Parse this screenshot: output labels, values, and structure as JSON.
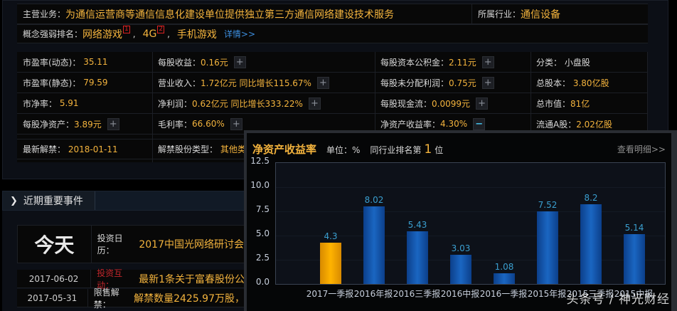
{
  "company_info": {
    "business_label": "主营业务：",
    "business_value": "为通信运营商等通信信息化建设单位提供独立第三方通信网络建设技术服务",
    "industry_label": "所属行业：",
    "industry_value": "通信设备",
    "concept_label": "概念强弱排名：",
    "concepts": [
      {
        "name": "网络游戏",
        "rank": "1"
      },
      {
        "name": "4G",
        "rank": "2"
      },
      {
        "name": "手机游戏",
        "rank": ""
      }
    ],
    "details_link": "详情>>"
  },
  "metrics": {
    "col1": [
      {
        "label": "市盈率(动态)：",
        "value": "35.11"
      },
      {
        "label": "市盈率(静态)：",
        "value": "79.59"
      },
      {
        "label": "市净率：",
        "value": "5.91"
      },
      {
        "label": "每股净资产：",
        "value": "3.89元"
      },
      {
        "label": "最新解禁：",
        "value": "2018-01-11"
      }
    ],
    "col2": [
      {
        "label": "每股收益：",
        "value": "0.16元"
      },
      {
        "label": "营业收入：",
        "value": "1.72亿元 同比增长115.67%"
      },
      {
        "label": "净利润：",
        "value": "0.62亿元 同比增长333.22%"
      },
      {
        "label": "毛利率：",
        "value": "66.60%"
      },
      {
        "label": "解禁股份类型：",
        "value": "其他类"
      }
    ],
    "col3": [
      {
        "label": "每股资本公积金：",
        "value": "2.11元"
      },
      {
        "label": "每股未分配利润：",
        "value": "0.75元"
      },
      {
        "label": "每股现金流：",
        "value": "0.0099元"
      },
      {
        "label": "净资产收益率：",
        "value": "4.30%"
      }
    ],
    "col4": [
      {
        "label": "分类：",
        "value": "小盘股",
        "plain": true
      },
      {
        "label": "总股本：",
        "value": "3.80亿股"
      },
      {
        "label": "总市值：",
        "value": "81亿"
      },
      {
        "label": "流通A股：",
        "value": "2.02亿股"
      }
    ],
    "expand_symbol": "+",
    "collapse_symbol": "−"
  },
  "events": {
    "tab_label": "近期重要事件",
    "today_label": "今天",
    "today_event_label": "投资日历：",
    "today_event_value": "2017中国光网络研讨会",
    "rows": [
      {
        "date": "2017-06-02",
        "label": "投资互动：",
        "value": "最新1条关于富春股份公",
        "label_color": "#c0262b"
      },
      {
        "date": "2017-05-31",
        "label": "限售解禁：",
        "value": "解禁数量2425.97万股，",
        "label_color": "#d8d8d8"
      }
    ]
  },
  "popup": {
    "title": "净资产收益率",
    "unit": "单位：%",
    "rank_prefix": "同行业排名第",
    "rank_value": "1",
    "rank_suffix": "位",
    "more_link": "查看明细>>"
  },
  "chart_data": {
    "type": "bar",
    "title": "净资产收益率",
    "ylabel": "%",
    "ylim": [
      0,
      12.5
    ],
    "yticks": [
      "12.5",
      "10.0",
      "7.5",
      "5.0",
      "2.5",
      "0.0"
    ],
    "categories": [
      "2017一季报",
      "2016年报",
      "2016三季报",
      "2016中报",
      "2016一季报",
      "2015年报",
      "2015三季报",
      "2015中报"
    ],
    "values": [
      4.3,
      8.02,
      5.43,
      3.03,
      1.08,
      7.52,
      8.2,
      5.14
    ],
    "value_labels": [
      "4.3",
      "8.02",
      "5.43",
      "3.03",
      "1.08",
      "7.52",
      "8.2",
      "5.14"
    ],
    "highlight_index": 0,
    "colors": {
      "highlight": "#ffb300",
      "normal": "#1a66c2"
    },
    "grid": true
  },
  "watermark": "头条号 / 神光财经"
}
